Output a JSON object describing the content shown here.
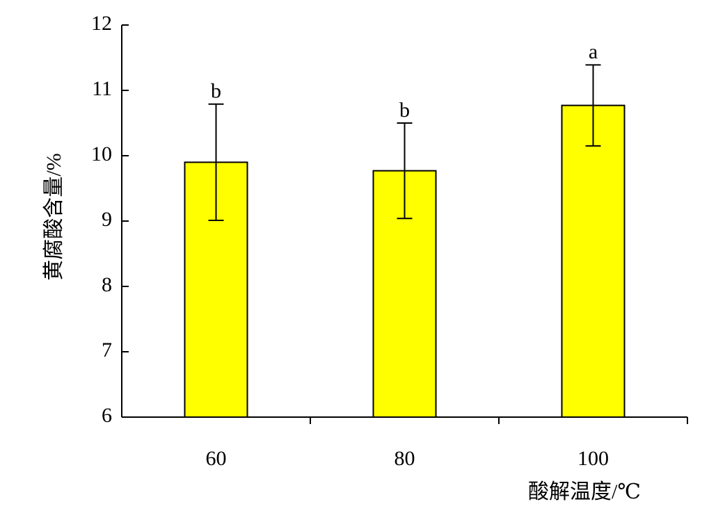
{
  "chart_data": {
    "type": "bar",
    "x_label": "酸解温度/℃",
    "y_label": "黄腐酸含量/%",
    "categories": [
      "60",
      "80",
      "100"
    ],
    "values": [
      9.9,
      9.77,
      10.77
    ],
    "errors": [
      0.89,
      0.73,
      0.62
    ],
    "significance_labels": [
      "b",
      "b",
      "a"
    ],
    "color": "#ffff00",
    "ylim": [
      6,
      12
    ],
    "yticks": [
      6,
      7,
      8,
      9,
      10,
      11,
      12
    ]
  }
}
